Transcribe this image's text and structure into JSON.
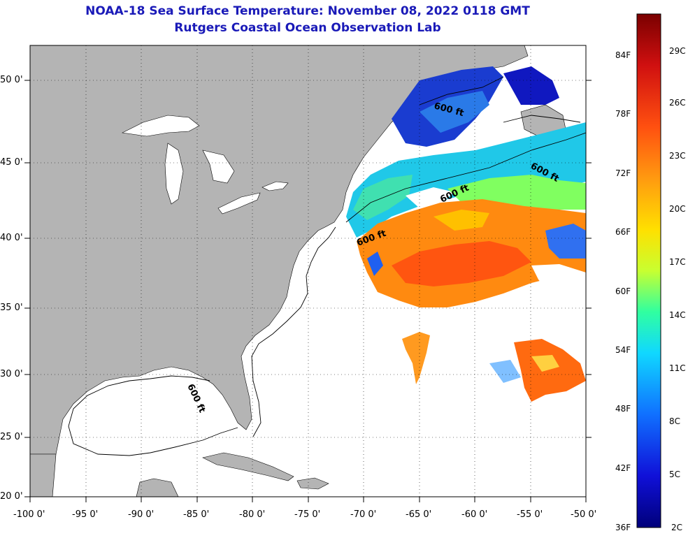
{
  "header": {
    "title": "NOAA-18 Sea Surface Temperature:  November 08, 2022 0118 GMT",
    "subtitle": "Rutgers Coastal Ocean Observation Lab"
  },
  "map": {
    "lon_range": [
      -100,
      -50
    ],
    "lat_range": [
      20,
      52.5
    ],
    "lon_ticks": [
      "-100 0'",
      "-95 0'",
      "-90 0'",
      "-85 0'",
      "-80 0'",
      "-75 0'",
      "-70 0'",
      "-65 0'",
      "-60 0'",
      "-55 0'",
      "-50 0'"
    ],
    "lat_ticks": [
      "50 0'",
      "45 0'",
      "40 0'",
      "35 0'",
      "30 0'",
      "25 0'",
      "20 0'"
    ],
    "contour_labels": [
      "600 ft",
      "600 ft",
      "600 ft",
      "600 ft",
      "600 ft"
    ],
    "colors": {
      "land": "#b4b4b4",
      "ocean_nodata": "#ffffff",
      "grid": "#000000"
    }
  },
  "colorbar": {
    "fahrenheit": [
      "84F",
      "78F",
      "72F",
      "66F",
      "60F",
      "54F",
      "48F",
      "42F",
      "36F"
    ],
    "celsius": [
      "29C",
      "26C",
      "23C",
      "20C",
      "17C",
      "14C",
      "11C",
      "8C",
      "5C",
      "2C"
    ],
    "colors": [
      "#7a0000",
      "#d01010",
      "#ff5010",
      "#ff9a10",
      "#ffe000",
      "#c8ff30",
      "#30ffa0",
      "#10d8ff",
      "#1070ff",
      "#1010d8",
      "#00007a"
    ]
  }
}
